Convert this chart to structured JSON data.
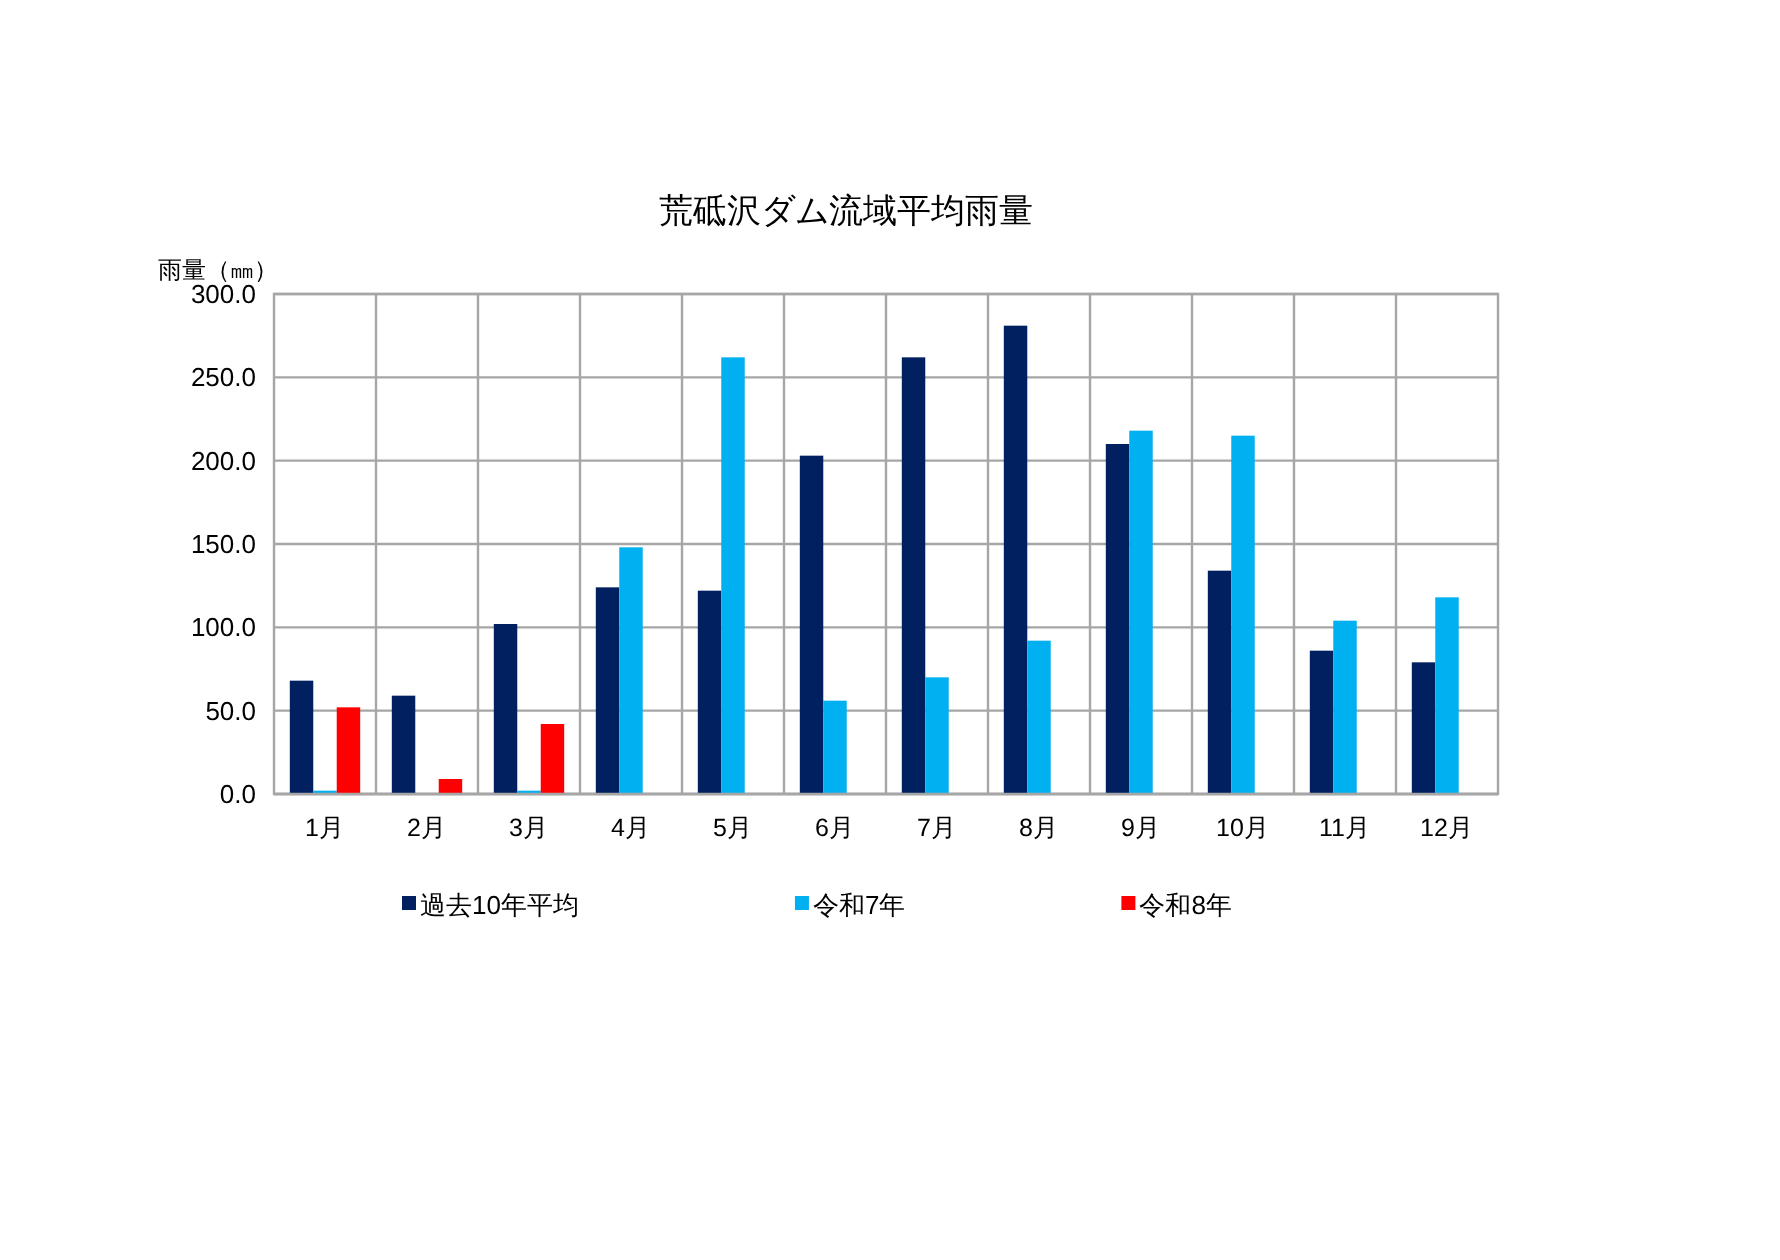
{
  "chart_data": {
    "type": "bar",
    "title": "荒砥沢ダム流域平均雨量",
    "ylabel": "雨量（㎜）",
    "categories": [
      "1月",
      "2月",
      "3月",
      "4月",
      "5月",
      "6月",
      "7月",
      "8月",
      "9月",
      "10月",
      "11月",
      "12月"
    ],
    "series": [
      {
        "name": "過去10年平均",
        "color": "#002060",
        "values": [
          68,
          59,
          102,
          124,
          122,
          203,
          262,
          281,
          210,
          134,
          86,
          79
        ]
      },
      {
        "name": "令和7年",
        "color": "#00b0f0",
        "values": [
          2,
          null,
          2,
          148,
          262,
          56,
          70,
          92,
          218,
          215,
          104,
          118
        ]
      },
      {
        "name": "令和8年",
        "color": "#ff0000",
        "values": [
          52,
          9,
          42,
          null,
          null,
          null,
          null,
          null,
          null,
          null,
          null,
          null
        ]
      }
    ],
    "ylim": [
      0,
      300
    ],
    "yticks": [
      {
        "value": 0,
        "label": "0.0"
      },
      {
        "value": 50,
        "label": "50.0"
      },
      {
        "value": 100,
        "label": "100.0"
      },
      {
        "value": 150,
        "label": "150.0"
      },
      {
        "value": 200,
        "label": "200.0"
      },
      {
        "value": 250,
        "label": "250.0"
      },
      {
        "value": 300,
        "label": "300.0"
      }
    ],
    "grid": true,
    "legend": "bottom"
  }
}
